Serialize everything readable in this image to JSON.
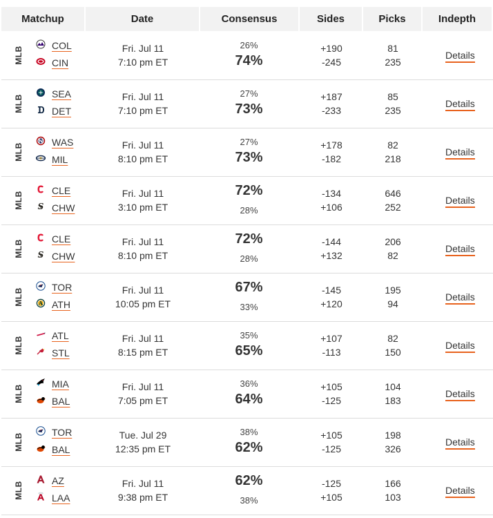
{
  "headers": {
    "matchup": "Matchup",
    "date": "Date",
    "consensus": "Consensus",
    "sides": "Sides",
    "picks": "Picks",
    "indepth": "Indepth"
  },
  "rows": [
    {
      "league": "MLB",
      "team1": "COL",
      "team2": "CIN",
      "date": "Fri. Jul 11",
      "time": "7:10 pm ET",
      "cons1": "26%",
      "cons2": "74%",
      "fav": 2,
      "side1": "+190",
      "side2": "-245",
      "pick1": "81",
      "pick2": "235",
      "details": "Details",
      "logo1": "rockies-icon",
      "logo2": "reds-icon"
    },
    {
      "league": "MLB",
      "team1": "SEA",
      "team2": "DET",
      "date": "Fri. Jul 11",
      "time": "7:10 pm ET",
      "cons1": "27%",
      "cons2": "73%",
      "fav": 2,
      "side1": "+187",
      "side2": "-233",
      "pick1": "85",
      "pick2": "235",
      "details": "Details",
      "logo1": "mariners-icon",
      "logo2": "tigers-icon"
    },
    {
      "league": "MLB",
      "team1": "WAS",
      "team2": "MIL",
      "date": "Fri. Jul 11",
      "time": "8:10 pm ET",
      "cons1": "27%",
      "cons2": "73%",
      "fav": 2,
      "side1": "+178",
      "side2": "-182",
      "pick1": "82",
      "pick2": "218",
      "details": "Details",
      "logo1": "nationals-icon",
      "logo2": "brewers-icon"
    },
    {
      "league": "MLB",
      "team1": "CLE",
      "team2": "CHW",
      "date": "Fri. Jul 11",
      "time": "3:10 pm ET",
      "cons1": "72%",
      "cons2": "28%",
      "fav": 1,
      "side1": "-134",
      "side2": "+106",
      "pick1": "646",
      "pick2": "252",
      "details": "Details",
      "logo1": "guardians-icon",
      "logo2": "white-sox-icon"
    },
    {
      "league": "MLB",
      "team1": "CLE",
      "team2": "CHW",
      "date": "Fri. Jul 11",
      "time": "8:10 pm ET",
      "cons1": "72%",
      "cons2": "28%",
      "fav": 1,
      "side1": "-144",
      "side2": "+132",
      "pick1": "206",
      "pick2": "82",
      "details": "Details",
      "logo1": "guardians-icon",
      "logo2": "white-sox-icon"
    },
    {
      "league": "MLB",
      "team1": "TOR",
      "team2": "ATH",
      "date": "Fri. Jul 11",
      "time": "10:05 pm ET",
      "cons1": "67%",
      "cons2": "33%",
      "fav": 1,
      "side1": "-145",
      "side2": "+120",
      "pick1": "195",
      "pick2": "94",
      "details": "Details",
      "logo1": "blue-jays-icon",
      "logo2": "athletics-icon"
    },
    {
      "league": "MLB",
      "team1": "ATL",
      "team2": "STL",
      "date": "Fri. Jul 11",
      "time": "8:15 pm ET",
      "cons1": "35%",
      "cons2": "65%",
      "fav": 2,
      "side1": "+107",
      "side2": "-113",
      "pick1": "82",
      "pick2": "150",
      "details": "Details",
      "logo1": "braves-icon",
      "logo2": "cardinals-icon"
    },
    {
      "league": "MLB",
      "team1": "MIA",
      "team2": "BAL",
      "date": "Fri. Jul 11",
      "time": "7:05 pm ET",
      "cons1": "36%",
      "cons2": "64%",
      "fav": 2,
      "side1": "+105",
      "side2": "-125",
      "pick1": "104",
      "pick2": "183",
      "details": "Details",
      "logo1": "marlins-icon",
      "logo2": "orioles-icon"
    },
    {
      "league": "MLB",
      "team1": "TOR",
      "team2": "BAL",
      "date": "Tue. Jul 29",
      "time": "12:35 pm ET",
      "cons1": "38%",
      "cons2": "62%",
      "fav": 2,
      "side1": "+105",
      "side2": "-125",
      "pick1": "198",
      "pick2": "326",
      "details": "Details",
      "logo1": "blue-jays-icon",
      "logo2": "orioles-icon"
    },
    {
      "league": "MLB",
      "team1": "AZ",
      "team2": "LAA",
      "date": "Fri. Jul 11",
      "time": "9:38 pm ET",
      "cons1": "62%",
      "cons2": "38%",
      "fav": 1,
      "side1": "-125",
      "side2": "+105",
      "pick1": "166",
      "pick2": "103",
      "details": "Details",
      "logo1": "diamondbacks-icon",
      "logo2": "angels-icon"
    }
  ],
  "colors": {
    "accent": "#e8621d",
    "header_bg": "#f2f2f2",
    "border": "#dcdcdc"
  }
}
